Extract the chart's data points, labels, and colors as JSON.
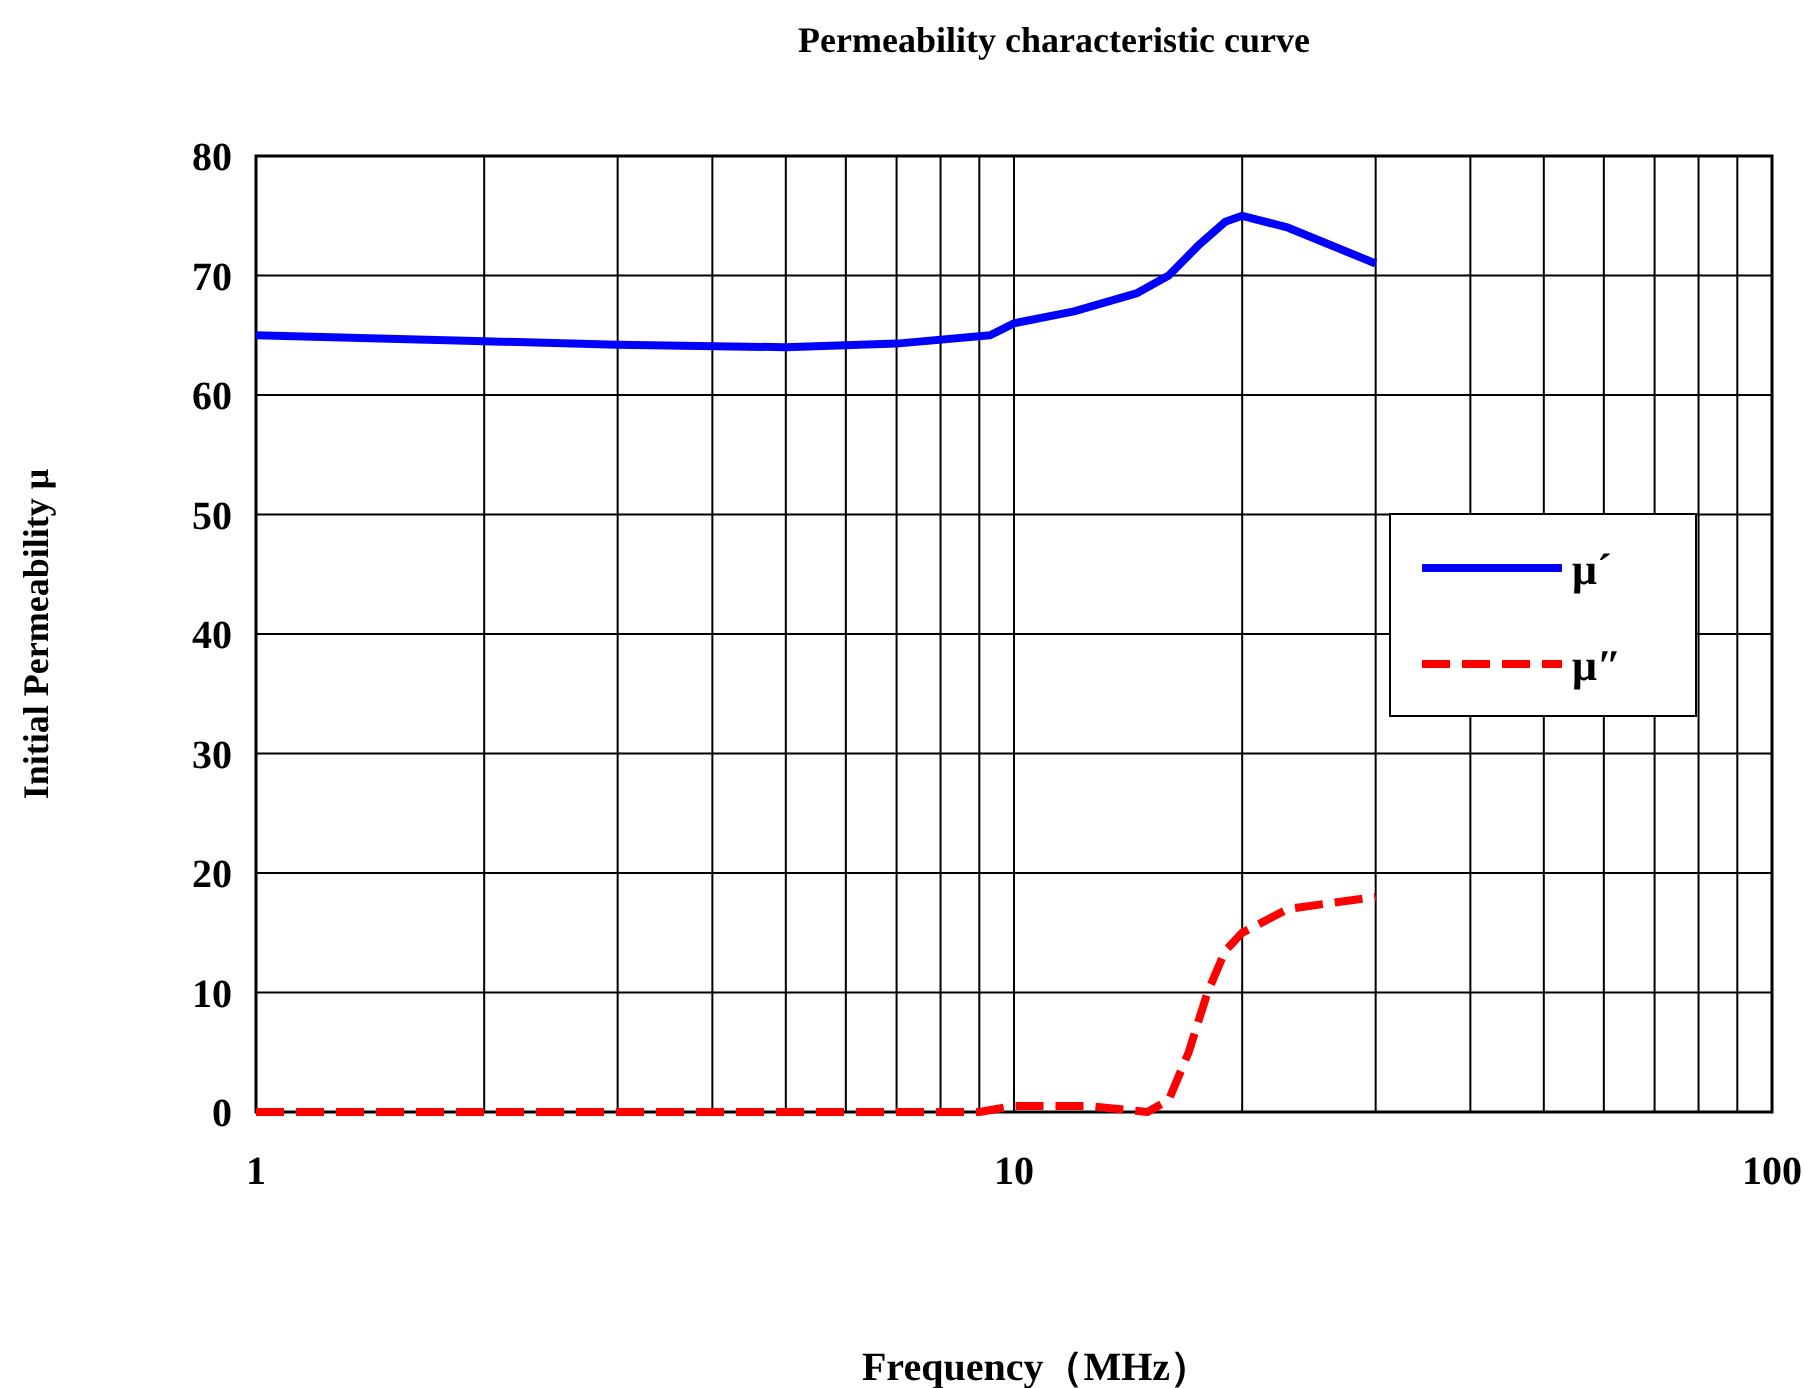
{
  "chart_data": {
    "type": "line",
    "title": "Permeability characteristic curve",
    "xlabel": "Frequency（MHz）",
    "ylabel": "Initial Permeability μ",
    "log": "x",
    "xlim": [
      1,
      100
    ],
    "xticks": [
      1,
      10,
      100
    ],
    "ylim": [
      0,
      80
    ],
    "yticks": [
      0,
      10,
      20,
      30,
      40,
      50,
      60,
      70,
      80
    ],
    "grid": true,
    "legend": "right",
    "marker": "none",
    "series": [
      {
        "name": "μ´",
        "color": "#0000ff",
        "line_style": "solid",
        "x": [
          1,
          2,
          3,
          5,
          7,
          9.3,
          10,
          12,
          14.5,
          16,
          17.5,
          19,
          20,
          23,
          30
        ],
        "values": [
          65,
          64.5,
          64.2,
          64,
          64.3,
          65,
          66,
          67,
          68.5,
          70,
          72.5,
          74.5,
          75,
          74,
          71
        ]
      },
      {
        "name": "μ″",
        "color": "#ff0000",
        "line_style": "dashed",
        "x": [
          1,
          3,
          5,
          9,
          10,
          12.5,
          15,
          16,
          17,
          18,
          19,
          20,
          23,
          30
        ],
        "values": [
          0,
          0,
          0,
          0,
          0.5,
          0.5,
          0,
          1,
          5,
          10,
          13.5,
          15,
          17,
          18
        ]
      }
    ]
  }
}
